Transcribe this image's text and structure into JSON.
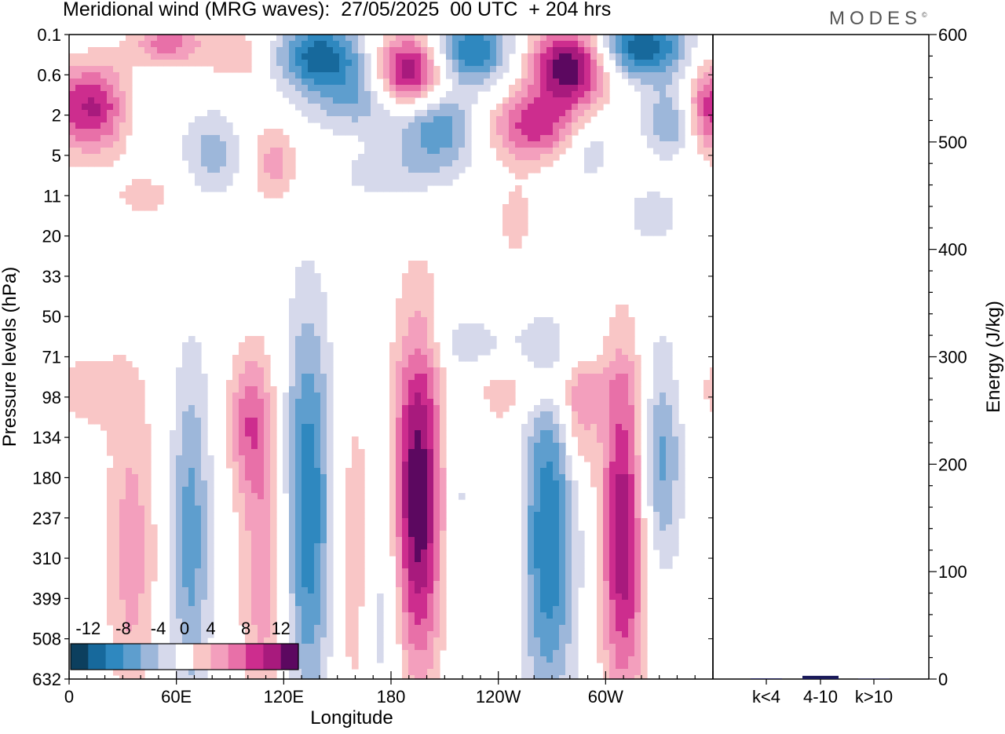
{
  "header": {
    "title": "Meridional wind (MRG waves):  27/05/2025  00 UTC  + 204 hrs",
    "logo_text": "MODES",
    "logo_mark": "©"
  },
  "colors": {
    "negative": [
      "#0c3f5e",
      "#17699c",
      "#2f88bf",
      "#5e9ece",
      "#9db7da",
      "#d6d9eb"
    ],
    "zero": "#ffffff",
    "positive": [
      "#f9c6c6",
      "#f39fbd",
      "#e870a8",
      "#cd2d8e",
      "#a81a7d",
      "#5c0860"
    ],
    "bar": "#1a1a5a"
  },
  "chart_data": [
    {
      "type": "heatmap",
      "title": "Meridional wind (MRG waves):  27/05/2025  00 UTC  + 204 hrs",
      "xlabel": "Longitude",
      "ylabel": "Pressure levels (hPa)",
      "x_ticks": [
        "0",
        "60E",
        "120E",
        "180",
        "120W",
        "60W"
      ],
      "x_tick_degrees": [
        0,
        60,
        120,
        180,
        240,
        300
      ],
      "xlim": [
        0,
        360
      ],
      "y_ticks": [
        "0.1",
        "0.6",
        "2",
        "5",
        "11",
        "20",
        "33",
        "50",
        "71",
        "98",
        "134",
        "180",
        "237",
        "310",
        "399",
        "508",
        "632"
      ],
      "y_scale": "pressure levels (top 0.1 hPa, bottom 632 hPa)",
      "colorbar": {
        "labels": [
          "-12",
          "-8",
          "-4",
          "0",
          "4",
          "8",
          "12"
        ],
        "levels": [
          -14,
          -12,
          -10,
          -8,
          -6,
          -4,
          -2,
          2,
          4,
          6,
          8,
          10,
          12,
          14
        ],
        "placement": "bottom-left"
      },
      "features": [
        {
          "lon": 195,
          "level": 11.5,
          "value": 14,
          "lon_width": 10,
          "level_height": 3.0
        },
        {
          "lon": 133,
          "level": 11.8,
          "value": -10,
          "lon_width": 10,
          "level_height": 3.5
        },
        {
          "lon": 268,
          "level": 12.5,
          "value": -10,
          "lon_width": 11,
          "level_height": 3.0
        },
        {
          "lon": 310,
          "level": 12.3,
          "value": 12,
          "lon_width": 9,
          "level_height": 3.0
        },
        {
          "lon": 68,
          "level": 12.5,
          "value": -7,
          "lon_width": 8,
          "level_height": 3.2
        },
        {
          "lon": 110,
          "level": 12.8,
          "value": 6,
          "lon_width": 10,
          "level_height": 3.0
        },
        {
          "lon": 35,
          "level": 12.8,
          "value": 5,
          "lon_width": 10,
          "level_height": 3.0
        },
        {
          "lon": 240,
          "level": 12.0,
          "value": 2.5,
          "lon_width": 10,
          "level_height": 2.6
        },
        {
          "lon": 160,
          "level": 13.0,
          "value": 4,
          "lon_width": 8,
          "level_height": 3.0
        },
        {
          "lon": 175,
          "level": 14.0,
          "value": -4,
          "lon_width": 8,
          "level_height": 2.5
        },
        {
          "lon": 220,
          "level": 11.5,
          "value": -3,
          "lon_width": 8,
          "level_height": 2.5
        },
        {
          "lon": 330,
          "level": 10.5,
          "value": -7,
          "lon_width": 9,
          "level_height": 2.0
        },
        {
          "lon": 100,
          "level": 9.6,
          "value": 6,
          "lon_width": 8,
          "level_height": 1.2
        },
        {
          "lon": 285,
          "level": 9.6,
          "value": 5,
          "lon_width": 7,
          "level_height": 1.0
        },
        {
          "lon": 10,
          "level": 8.8,
          "value": 3,
          "lon_width": 15,
          "level_height": 0.8
        },
        {
          "lon": 190,
          "level": 1.0,
          "value": 14,
          "lon_width": 14,
          "level_height": 0.7
        },
        {
          "lon": 140,
          "level": 0.5,
          "value": -11,
          "lon_width": 18,
          "level_height": 0.6
        },
        {
          "lon": 225,
          "level": 0.4,
          "value": -10,
          "lon_width": 16,
          "level_height": 0.6
        },
        {
          "lon": 280,
          "level": 0.8,
          "value": 14,
          "lon_width": 16,
          "level_height": 0.7
        },
        {
          "lon": 320,
          "level": 0.3,
          "value": -12,
          "lon_width": 18,
          "level_height": 0.6
        },
        {
          "lon": 15,
          "level": 1.8,
          "value": 10,
          "lon_width": 12,
          "level_height": 0.8
        },
        {
          "lon": 260,
          "level": 2.3,
          "value": 9,
          "lon_width": 18,
          "level_height": 0.6
        },
        {
          "lon": 205,
          "level": 2.3,
          "value": -8,
          "lon_width": 16,
          "level_height": 0.7
        },
        {
          "lon": 165,
          "level": 1.6,
          "value": -6,
          "lon_width": 22,
          "level_height": 0.6
        },
        {
          "lon": 55,
          "level": 0.2,
          "value": 7,
          "lon_width": 14,
          "level_height": 0.4
        },
        {
          "lon": 95,
          "level": 0.5,
          "value": 4,
          "lon_width": 14,
          "level_height": 0.5
        },
        {
          "lon": 335,
          "level": 2.2,
          "value": -6,
          "lon_width": 10,
          "level_height": 0.6
        },
        {
          "lon": 355,
          "level": 1.8,
          "value": 6,
          "lon_width": 8,
          "level_height": 0.8
        },
        {
          "lon": 80,
          "level": 3.0,
          "value": -5,
          "lon_width": 12,
          "level_height": 0.8
        },
        {
          "lon": 115,
          "level": 3.2,
          "value": 5,
          "lon_width": 10,
          "level_height": 0.7
        },
        {
          "lon": 290,
          "level": 2.8,
          "value": -4,
          "lon_width": 10,
          "level_height": 0.6
        },
        {
          "lon": 270,
          "level": 8.8,
          "value": 3,
          "lon_width": 35,
          "level_height": 0.5
        },
        {
          "lon": 230,
          "level": 7.7,
          "value": -3,
          "lon_width": 20,
          "level_height": 0.5
        },
        {
          "lon": 45,
          "level": 4.0,
          "value": 2.5,
          "lon_width": 20,
          "level_height": 0.5
        },
        {
          "lon": 325,
          "level": 4.5,
          "value": -3,
          "lon_width": 15,
          "level_height": 0.6
        },
        {
          "lon": 250,
          "level": 4.6,
          "value": 3,
          "lon_width": 8,
          "level_height": 0.8
        },
        {
          "lon": 180,
          "level": 3.5,
          "value": -3,
          "lon_width": 25,
          "level_height": 0.5
        }
      ]
    },
    {
      "type": "bar",
      "ylabel": "Energy (J/kg)",
      "categories": [
        "k<4",
        "4-10",
        "k>10"
      ],
      "values": [
        0.6,
        3,
        0.4
      ],
      "ylim": [
        0,
        600
      ],
      "y_ticks": [
        0,
        100,
        200,
        300,
        400,
        500,
        600
      ]
    }
  ]
}
